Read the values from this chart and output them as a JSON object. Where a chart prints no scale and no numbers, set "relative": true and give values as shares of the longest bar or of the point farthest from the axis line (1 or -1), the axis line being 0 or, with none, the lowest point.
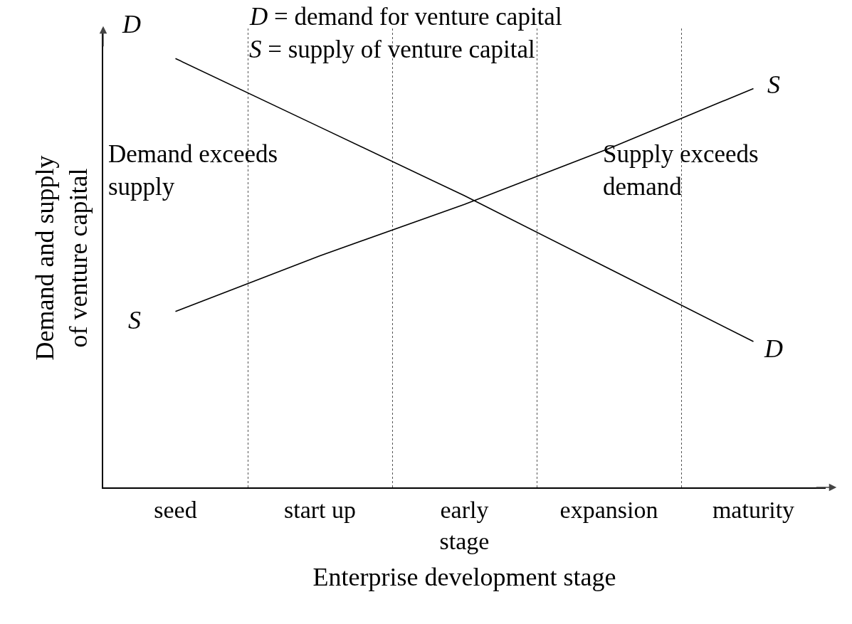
{
  "chart_data": {
    "type": "line",
    "relative": true,
    "categories": [
      "seed",
      "start up",
      "early stage",
      "expansion",
      "maturity"
    ],
    "series": [
      {
        "name": "D",
        "color": "#000000",
        "values": [
          1,
          0.84,
          0.68,
          0.51,
          0.34
        ]
      },
      {
        "name": "S",
        "color": "#000000",
        "values": [
          0.41,
          0.54,
          0.66,
          0.79,
          0.93
        ]
      }
    ],
    "xlabel": "Enterprise development stage",
    "ylabel": "Demand and supply of venture capital",
    "annotations": [
      "D = demand for venture capital",
      "S = supply of venture capital",
      "Demand exceeds supply",
      "Supply exceeds demand"
    ],
    "grid": "x",
    "marker": "none",
    "line_style": "solid"
  }
}
